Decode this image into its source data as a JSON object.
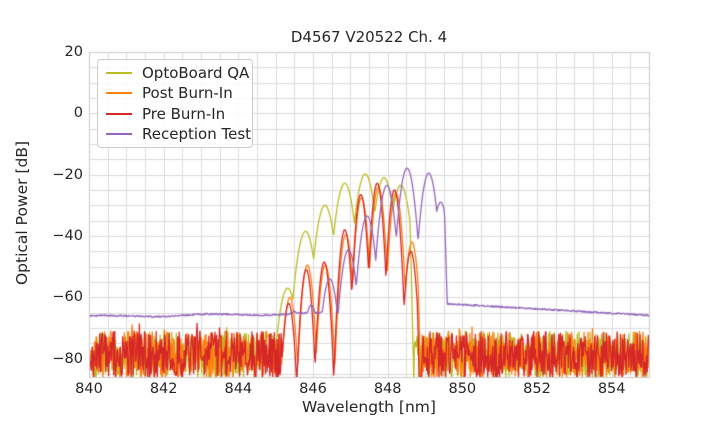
{
  "chart_data": {
    "type": "line",
    "title": "D4567 V20522 Ch. 4",
    "xlabel": "Wavelength [nm]",
    "ylabel": "Optical Power [dB]",
    "xlim": [
      840,
      855
    ],
    "ylim": [
      -86,
      20
    ],
    "grid": {
      "enabled": true,
      "x_step_nm": 0.5,
      "y_step_db": 5,
      "color": "#dcdcdc",
      "spine_color": "#cccccc"
    },
    "background_color": "#ffffff",
    "text_color": "#262626",
    "xticks": [
      {
        "value": 840,
        "label": "840"
      },
      {
        "value": 842,
        "label": "842"
      },
      {
        "value": 844,
        "label": "844"
      },
      {
        "value": 846,
        "label": "846"
      },
      {
        "value": 848,
        "label": "848"
      },
      {
        "value": 850,
        "label": "850"
      },
      {
        "value": 852,
        "label": "852"
      },
      {
        "value": 854,
        "label": "854"
      }
    ],
    "yticks": [
      {
        "value": 20,
        "label": "20"
      },
      {
        "value": 0,
        "label": "0"
      },
      {
        "value": -20,
        "label": "−20"
      },
      {
        "value": -40,
        "label": "−40"
      },
      {
        "value": -60,
        "label": "−60"
      },
      {
        "value": -80,
        "label": "−80"
      }
    ],
    "legend": {
      "position": "upper left"
    },
    "series": [
      {
        "name": "OptoBoard QA",
        "color": "#bcbd22",
        "description": "multimode VCSEL spectrum; peaks listed as [wavelength_nm, power_dB]",
        "modes": [
          [
            844.85,
            -72
          ],
          [
            845.32,
            -57
          ],
          [
            845.8,
            -38.5
          ],
          [
            846.32,
            -30
          ],
          [
            846.85,
            -22.8
          ],
          [
            847.4,
            -19.8
          ],
          [
            847.9,
            -21
          ],
          [
            848.35,
            -23.5
          ]
        ],
        "mode_width_nm": 0.27,
        "notch_depth_db": 14,
        "cliff_nm": 848.6,
        "cliff_slope_db_per_nm": 400,
        "noise_band": {
          "min_db": -86.5,
          "max_db": -71,
          "until_nm": 845.1,
          "resume_nm": 848.7,
          "spike_prob": 0.05,
          "spike_db": 2.5
        }
      },
      {
        "name": "Post Burn-In",
        "color": "#ff7f0e",
        "description": "multimode VCSEL spectrum; peaks listed as [wavelength_nm, power_dB]",
        "modes": [
          [
            845.38,
            -60
          ],
          [
            845.85,
            -49.5
          ],
          [
            846.33,
            -49.5
          ],
          [
            846.88,
            -39.5
          ],
          [
            847.3,
            -27.5
          ],
          [
            847.75,
            -24
          ],
          [
            848.22,
            -26
          ],
          [
            848.65,
            -42
          ]
        ],
        "mode_width_nm": 0.22,
        "notch_depth_db": 24,
        "cliff_nm": 848.82,
        "cliff_slope_db_per_nm": 320,
        "noise_band": {
          "min_db": -86.5,
          "max_db": -71,
          "until_nm": 845.45,
          "resume_nm": 848.92,
          "spike_prob": 0.05,
          "spike_db": 2.5
        }
      },
      {
        "name": "Pre Burn-In",
        "color": "#d62728",
        "description": "multimode VCSEL spectrum; peaks listed as [wavelength_nm, power_dB]",
        "modes": [
          [
            845.35,
            -62
          ],
          [
            845.82,
            -51
          ],
          [
            846.3,
            -48.5
          ],
          [
            846.85,
            -38
          ],
          [
            847.28,
            -26.5
          ],
          [
            847.72,
            -22.8
          ],
          [
            848.18,
            -25
          ],
          [
            848.62,
            -45
          ]
        ],
        "mode_width_nm": 0.21,
        "notch_depth_db": 25,
        "cliff_nm": 848.8,
        "cliff_slope_db_per_nm": 320,
        "noise_band": {
          "min_db": -86.5,
          "max_db": -71,
          "until_nm": 845.5,
          "resume_nm": 848.9,
          "spike_prob": 0.05,
          "spike_db": 2.5
        }
      },
      {
        "name": "Reception Test",
        "color": "#9467bd",
        "description": "multimode VCSEL spectrum with elevated smooth floor; peaks listed as [wavelength_nm, power_dB]",
        "modes": [
          [
            845.5,
            -64.5
          ],
          [
            845.95,
            -62.5
          ],
          [
            846.45,
            -54
          ],
          [
            846.95,
            -44.5
          ],
          [
            847.45,
            -33.5
          ],
          [
            847.98,
            -23.5
          ],
          [
            848.52,
            -17.9
          ],
          [
            849.1,
            -19.5
          ],
          [
            849.42,
            -29
          ]
        ],
        "mode_width_nm": 0.25,
        "notch_depth_db": 17,
        "cliff_nm": 849.52,
        "cliff_slope_db_per_nm": 330,
        "floor_left": {
          "level_at_840_db": -66.3,
          "slope_db_per_nm": 0.16,
          "until_nm": 849.0
        },
        "tail": {
          "level_at_850_db": -62.4,
          "slope_db_per_nm": -0.7,
          "from_nm": 849.45
        }
      }
    ]
  }
}
